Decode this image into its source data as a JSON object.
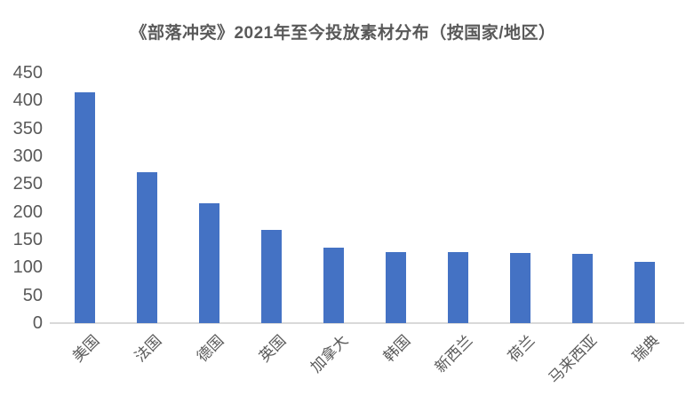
{
  "title": "《部落冲突》2021年至今投放素材分布（按国家/地区）",
  "chart_data": {
    "type": "bar",
    "title": "《部落冲突》2021年至今投放素材分布（按国家/地区）",
    "categories": [
      "美国",
      "法国",
      "德国",
      "英国",
      "加拿大",
      "韩国",
      "新西兰",
      "荷兰",
      "马来西亚",
      "瑞典"
    ],
    "values": [
      415,
      272,
      215,
      168,
      136,
      128,
      127,
      126,
      125,
      110
    ],
    "xlabel": "",
    "ylabel": "",
    "ylim": [
      0,
      450
    ],
    "ytick_step": 50,
    "yticks": [
      450,
      400,
      350,
      300,
      250,
      200,
      150,
      100,
      50,
      0
    ],
    "grid": false,
    "legend": false,
    "colors": {
      "bar": "#4472C4",
      "text": "#595959",
      "axis_line": "#D9D9D9",
      "background": "#FFFFFF"
    }
  }
}
